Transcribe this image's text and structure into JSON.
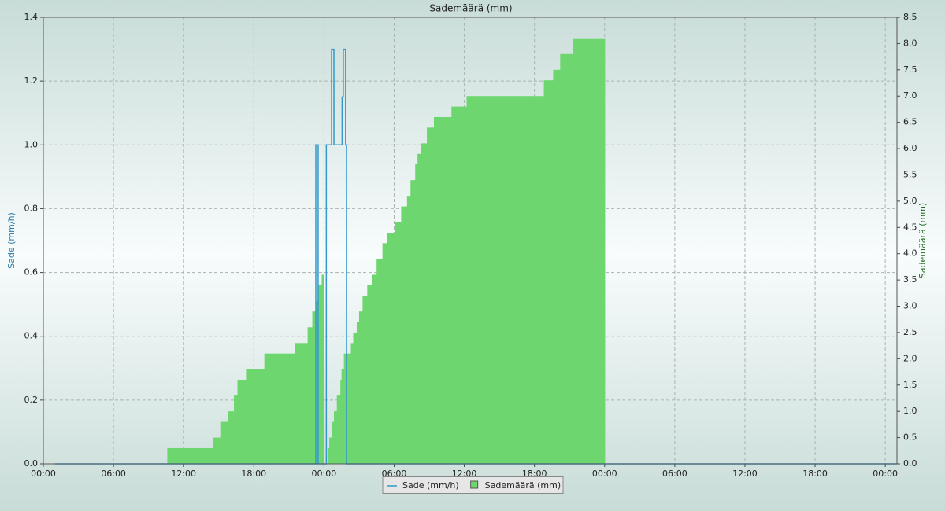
{
  "chart_data": {
    "type": "step",
    "title": "Sademäärä (mm)",
    "y_label": "Sade (mm/h)",
    "y2_label": "Sademäärä (mm)",
    "xlim": [
      0,
      73
    ],
    "xticks": [
      {
        "value": 0,
        "label": "00:00"
      },
      {
        "value": 6,
        "label": "06:00"
      },
      {
        "value": 12,
        "label": "12:00"
      },
      {
        "value": 18,
        "label": "18:00"
      },
      {
        "value": 24,
        "label": "00:00"
      },
      {
        "value": 30,
        "label": "06:00"
      },
      {
        "value": 36,
        "label": "12:00"
      },
      {
        "value": 42,
        "label": "18:00"
      },
      {
        "value": 48,
        "label": "00:00"
      },
      {
        "value": 54,
        "label": "06:00"
      },
      {
        "value": 60,
        "label": "12:00"
      },
      {
        "value": 66,
        "label": "18:00"
      },
      {
        "value": 72,
        "label": "00:00"
      }
    ],
    "ylim": [
      0,
      1.4
    ],
    "yticks": [
      {
        "value": 0,
        "label": "0.0"
      },
      {
        "value": 0.2,
        "label": "0.2"
      },
      {
        "value": 0.4,
        "label": "0.4"
      },
      {
        "value": 0.6,
        "label": "0.6"
      },
      {
        "value": 0.8,
        "label": "0.8"
      },
      {
        "value": 1.0,
        "label": "1.0"
      },
      {
        "value": 1.2,
        "label": "1.2"
      },
      {
        "value": 1.4,
        "label": "1.4"
      }
    ],
    "y2lim": [
      0,
      8.5
    ],
    "y2ticks": [
      {
        "value": 0,
        "label": "0.0"
      },
      {
        "value": 0.5,
        "label": "0.5"
      },
      {
        "value": 1,
        "label": "1.0"
      },
      {
        "value": 1.5,
        "label": "1.5"
      },
      {
        "value": 2,
        "label": "2.0"
      },
      {
        "value": 2.5,
        "label": "2.5"
      },
      {
        "value": 3,
        "label": "3.0"
      },
      {
        "value": 3.5,
        "label": "3.5"
      },
      {
        "value": 4,
        "label": "4.0"
      },
      {
        "value": 4.5,
        "label": "4.5"
      },
      {
        "value": 5,
        "label": "5.0"
      },
      {
        "value": 5.5,
        "label": "5.5"
      },
      {
        "value": 6,
        "label": "6.0"
      },
      {
        "value": 6.5,
        "label": "6.5"
      },
      {
        "value": 7,
        "label": "7.0"
      },
      {
        "value": 7.5,
        "label": "7.5"
      },
      {
        "value": 8,
        "label": "8.0"
      },
      {
        "value": 8.5,
        "label": "8.5"
      }
    ],
    "grid": true,
    "legend": "bottom",
    "series": [
      {
        "name": "Sade (mm/h)",
        "color": "#3399cc",
        "kind": "line",
        "x": [
          1,
          23.3,
          23.3,
          23.5,
          23.5,
          24.2,
          24.2,
          24.65,
          24.65,
          24.85,
          24.85,
          25.55,
          25.55,
          25.65,
          25.65,
          25.85,
          25.85,
          25.93,
          25.93,
          73
        ],
        "values": [
          0,
          0,
          1.0,
          1.0,
          0,
          0,
          1.0,
          1.0,
          1.3,
          1.3,
          1.0,
          1.0,
          1.15,
          1.15,
          1.3,
          1.3,
          1.0,
          1.0,
          0,
          0
        ]
      },
      {
        "name": "Sademäärä (mm)",
        "color": "#6ed66e",
        "kind": "steps",
        "axis": "y2",
        "x": [
          10.6,
          14.5,
          15.2,
          15.8,
          16.3,
          16.6,
          17.4,
          18.9,
          21.5,
          22.6,
          23.0,
          23.3,
          23.5,
          23.8,
          24.0,
          24.3,
          24.45,
          24.65,
          24.85,
          25.1,
          25.4,
          25.5,
          25.7,
          26.3,
          26.5,
          26.8,
          27.0,
          27.3,
          27.7,
          28.1,
          28.5,
          29.0,
          29.4,
          30.1,
          30.6,
          31.1,
          31.4,
          31.8,
          32.0,
          32.3,
          32.8,
          33.4,
          34.9,
          36.2,
          42.8,
          43.6,
          44.2,
          45.3,
          48.0
        ],
        "values": [
          0.3,
          0.5,
          0.8,
          1.0,
          1.3,
          1.6,
          1.8,
          2.1,
          2.3,
          2.6,
          2.9,
          3.1,
          3.4,
          3.6,
          0,
          0.3,
          0.5,
          0.8,
          1.0,
          1.3,
          1.6,
          1.8,
          2.1,
          2.3,
          2.5,
          2.7,
          2.9,
          3.2,
          3.4,
          3.6,
          3.9,
          4.2,
          4.4,
          4.6,
          4.9,
          5.1,
          5.4,
          5.7,
          5.9,
          6.1,
          6.4,
          6.6,
          6.8,
          7.0,
          7.3,
          7.5,
          7.8,
          8.1,
          0
        ]
      }
    ]
  }
}
